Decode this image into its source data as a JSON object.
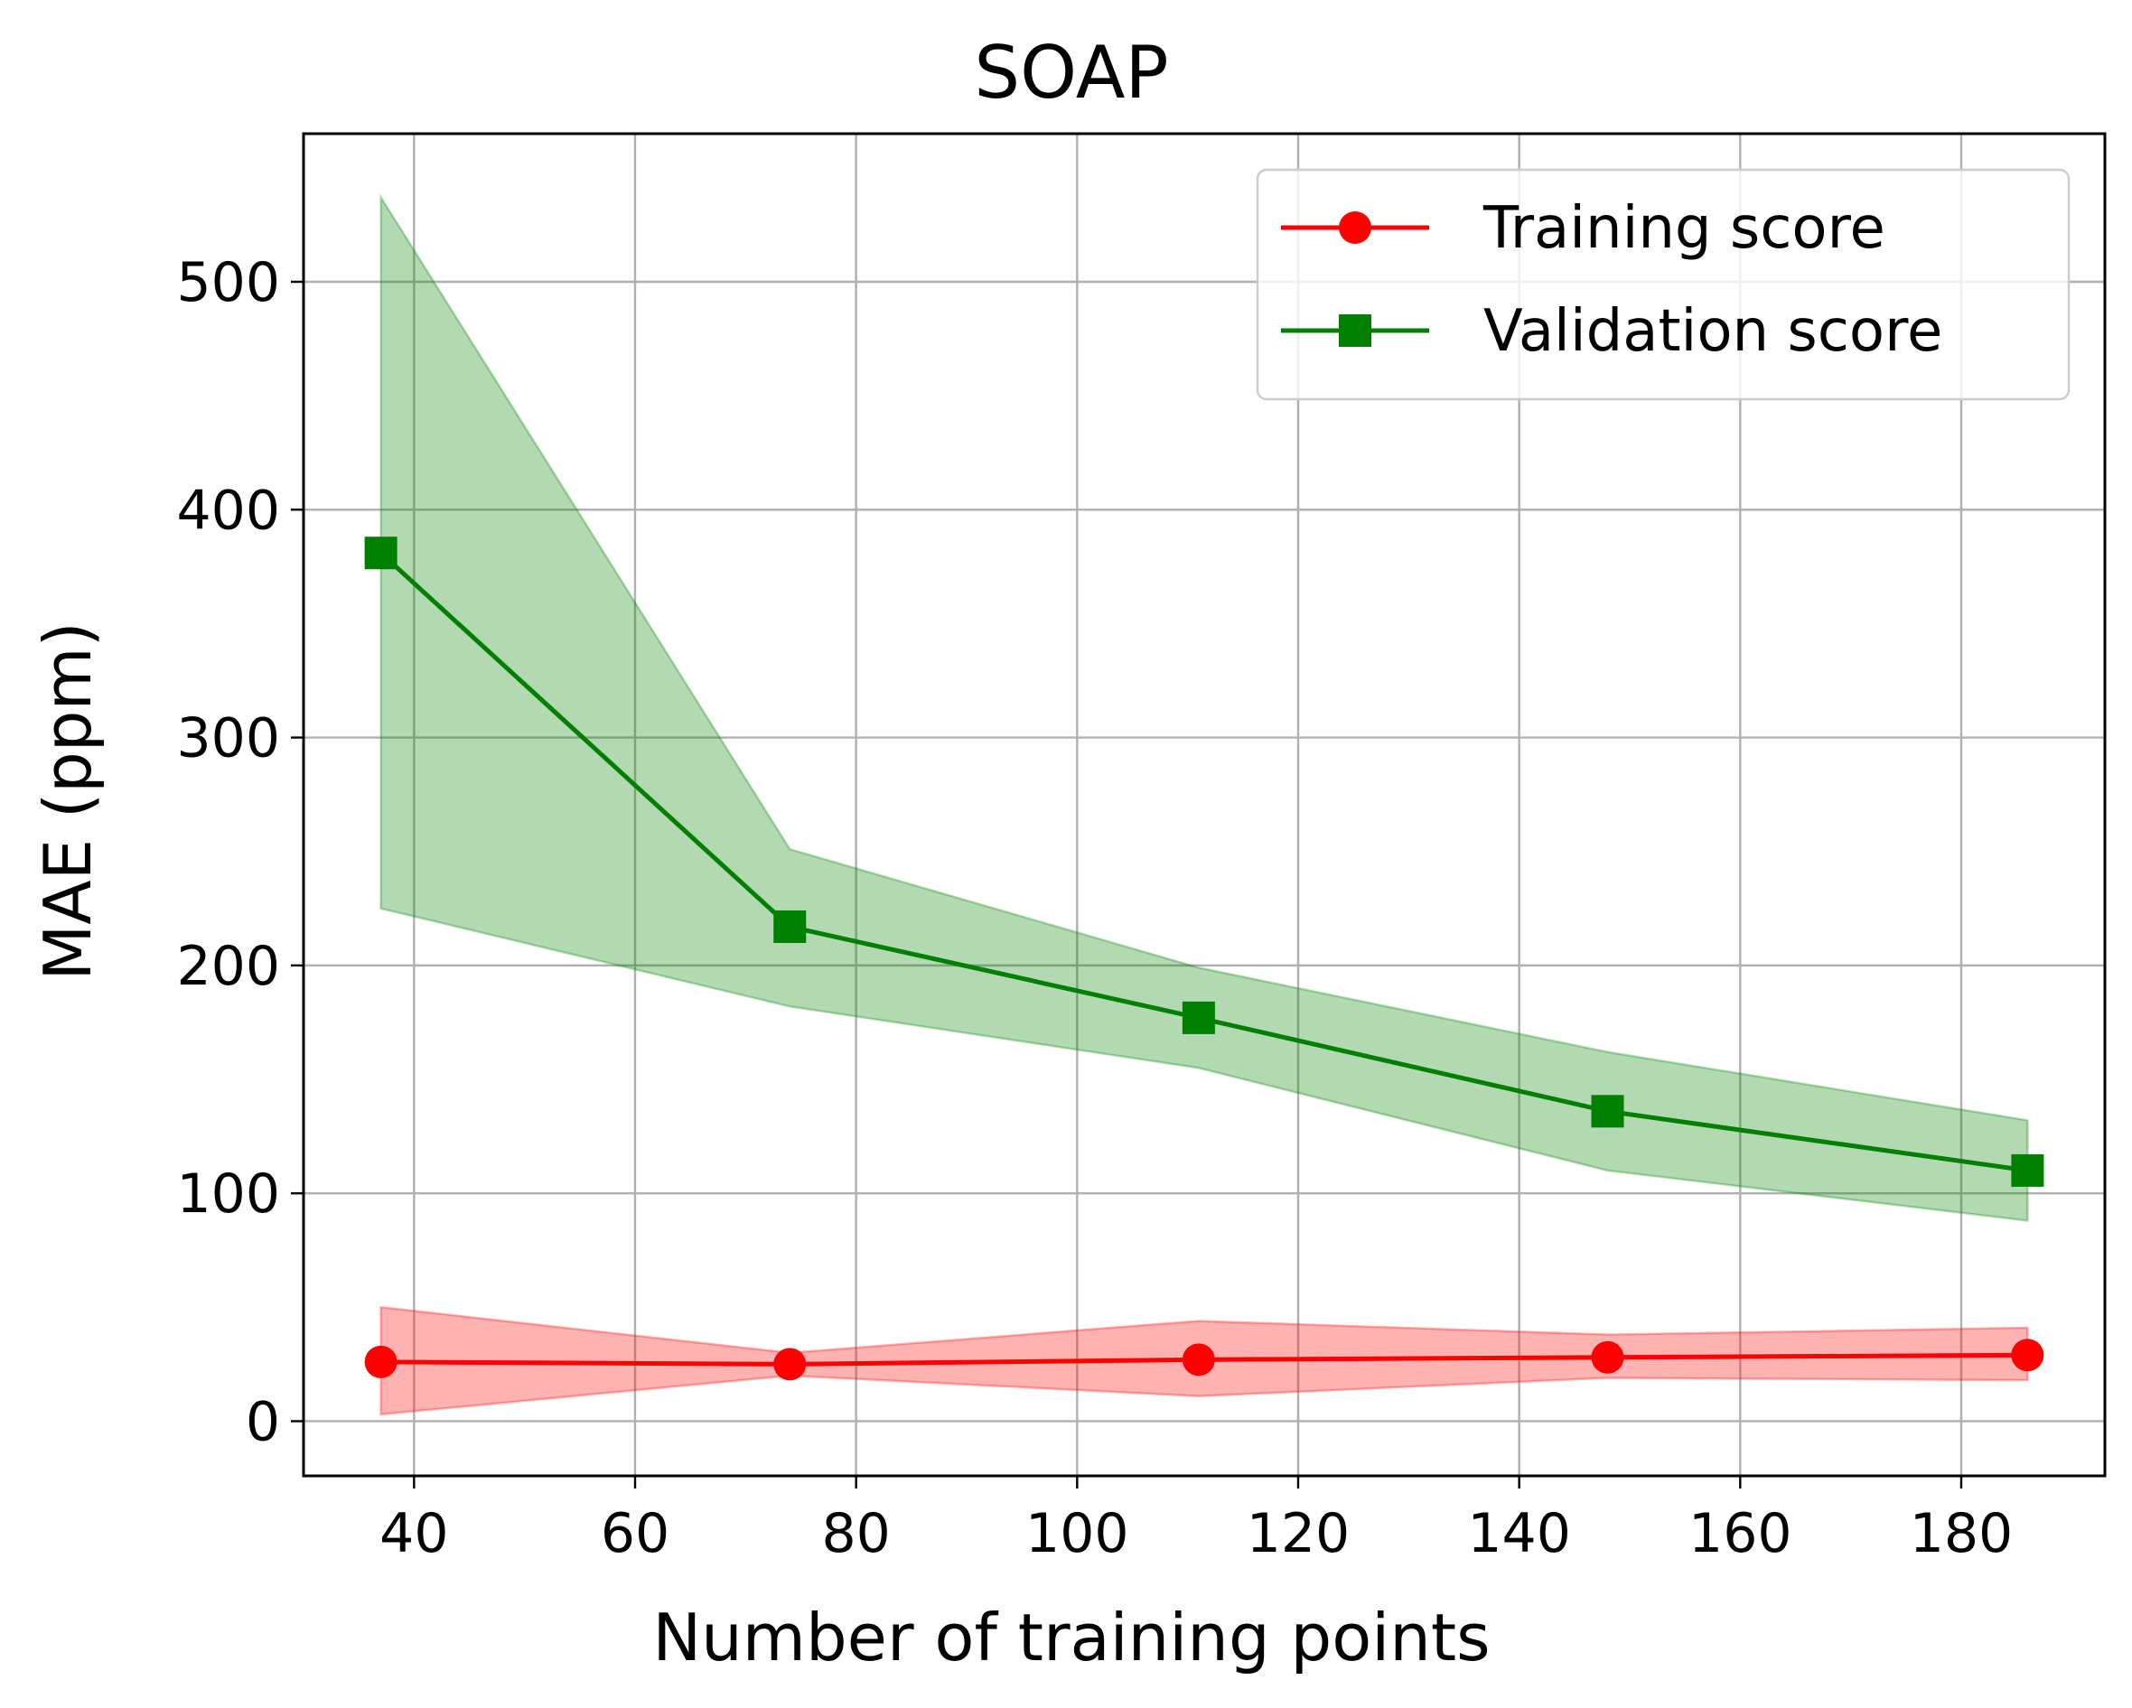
{
  "chart_data": {
    "type": "line",
    "title": "SOAP",
    "xlabel": "Number of training points",
    "ylabel": "MAE (ppm)",
    "xlim": [
      30,
      193
    ],
    "ylim": [
      -24,
      565
    ],
    "grid": true,
    "legend_position": "top-right",
    "x": [
      37,
      74,
      111,
      148,
      186
    ],
    "xticks": [
      40,
      60,
      80,
      100,
      120,
      140,
      160,
      180
    ],
    "yticks": [
      0,
      100,
      200,
      300,
      400,
      500
    ],
    "series": [
      {
        "name": "Training score",
        "color": "#ff0000",
        "band_color": "#ff0000",
        "marker": "circle",
        "values": [
          26,
          25,
          27,
          28,
          29
        ],
        "lower": [
          3,
          20,
          11,
          19,
          18
        ],
        "upper": [
          50,
          30,
          44,
          38,
          41
        ]
      },
      {
        "name": "Validation score",
        "color": "#007f00",
        "band_color": "#008000",
        "marker": "square",
        "values": [
          381,
          217,
          177,
          136,
          110
        ],
        "lower": [
          225,
          182,
          155,
          110,
          88
        ],
        "upper": [
          537,
          251,
          199,
          162,
          132
        ]
      }
    ]
  }
}
